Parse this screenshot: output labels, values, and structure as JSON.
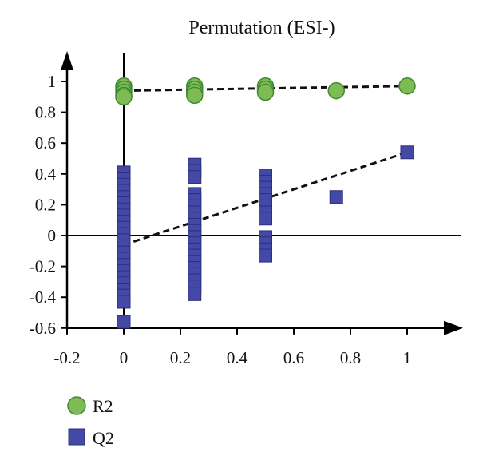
{
  "chart_data": {
    "type": "scatter",
    "title": "Permutation (ESI-)",
    "xlabel": "",
    "ylabel": "",
    "xlim": [
      -0.2,
      1.2
    ],
    "ylim": [
      -0.6,
      1.1
    ],
    "x_ticks": [
      "-0.2",
      "0",
      "0.2",
      "0.4",
      "0.6",
      "0.8",
      "1"
    ],
    "x_tick_values": [
      -0.2,
      0,
      0.2,
      0.4,
      0.6,
      0.8,
      1
    ],
    "y_ticks": [
      "1",
      "0.8",
      "0.6",
      "0.4",
      "0.2",
      "0",
      "-0.2",
      "-0.4",
      "-0.6"
    ],
    "y_tick_values": [
      1,
      0.8,
      0.6,
      0.4,
      0.2,
      0,
      -0.2,
      -0.4,
      -0.6
    ],
    "legend": {
      "placement": "bottom-left"
    },
    "colors": {
      "r2_fill": "#7dbb54",
      "r2_stroke": "#3f8a32",
      "q2_fill": "#4448a6",
      "q2_stroke": "#2c2f7c",
      "axis": "#000000",
      "trend": "#111111"
    },
    "series": [
      {
        "name": "R2",
        "marker": "circle",
        "points": [
          [
            0,
            0.97
          ],
          [
            0,
            0.95
          ],
          [
            0,
            0.93
          ],
          [
            0,
            0.91
          ],
          [
            0,
            0.9
          ],
          [
            0.25,
            0.97
          ],
          [
            0.25,
            0.95
          ],
          [
            0.25,
            0.93
          ],
          [
            0.25,
            0.91
          ],
          [
            0.5,
            0.97
          ],
          [
            0.5,
            0.95
          ],
          [
            0.5,
            0.93
          ],
          [
            0.75,
            0.94
          ],
          [
            1,
            0.97
          ]
        ],
        "trendline": [
          [
            0,
            0.94
          ],
          [
            1,
            0.97
          ]
        ]
      },
      {
        "name": "Q2",
        "marker": "square",
        "points": [
          [
            0,
            0.41
          ],
          [
            0,
            0.37
          ],
          [
            0,
            0.33
          ],
          [
            0,
            0.29
          ],
          [
            0,
            0.25
          ],
          [
            0,
            0.21
          ],
          [
            0,
            0.17
          ],
          [
            0,
            0.13
          ],
          [
            0,
            0.09
          ],
          [
            0,
            0.05
          ],
          [
            0,
            0.01
          ],
          [
            0,
            -0.03
          ],
          [
            0,
            -0.07
          ],
          [
            0,
            -0.11
          ],
          [
            0,
            -0.15
          ],
          [
            0,
            -0.19
          ],
          [
            0,
            -0.23
          ],
          [
            0,
            -0.27
          ],
          [
            0,
            -0.31
          ],
          [
            0,
            -0.35
          ],
          [
            0,
            -0.39
          ],
          [
            0,
            -0.43
          ],
          [
            0,
            -0.56
          ],
          [
            0.25,
            0.46
          ],
          [
            0.25,
            0.42
          ],
          [
            0.25,
            0.38
          ],
          [
            0.25,
            0.27
          ],
          [
            0.25,
            0.23
          ],
          [
            0.25,
            0.19
          ],
          [
            0.25,
            0.15
          ],
          [
            0.25,
            0.11
          ],
          [
            0.25,
            0.07
          ],
          [
            0.25,
            0.03
          ],
          [
            0.25,
            -0.01
          ],
          [
            0.25,
            -0.05
          ],
          [
            0.25,
            -0.09
          ],
          [
            0.25,
            -0.13
          ],
          [
            0.25,
            -0.17
          ],
          [
            0.25,
            -0.21
          ],
          [
            0.25,
            -0.25
          ],
          [
            0.25,
            -0.29
          ],
          [
            0.25,
            -0.33
          ],
          [
            0.25,
            -0.38
          ],
          [
            0.5,
            0.39
          ],
          [
            0.5,
            0.35
          ],
          [
            0.5,
            0.31
          ],
          [
            0.5,
            0.27
          ],
          [
            0.5,
            0.23
          ],
          [
            0.5,
            0.19
          ],
          [
            0.5,
            0.15
          ],
          [
            0.5,
            0.11
          ],
          [
            0.5,
            -0.01
          ],
          [
            0.5,
            -0.05
          ],
          [
            0.5,
            -0.09
          ],
          [
            0.5,
            -0.13
          ],
          [
            0.75,
            0.25
          ],
          [
            1,
            0.54
          ]
        ],
        "trendline": [
          [
            0,
            -0.06
          ],
          [
            1,
            0.54
          ]
        ]
      }
    ]
  }
}
